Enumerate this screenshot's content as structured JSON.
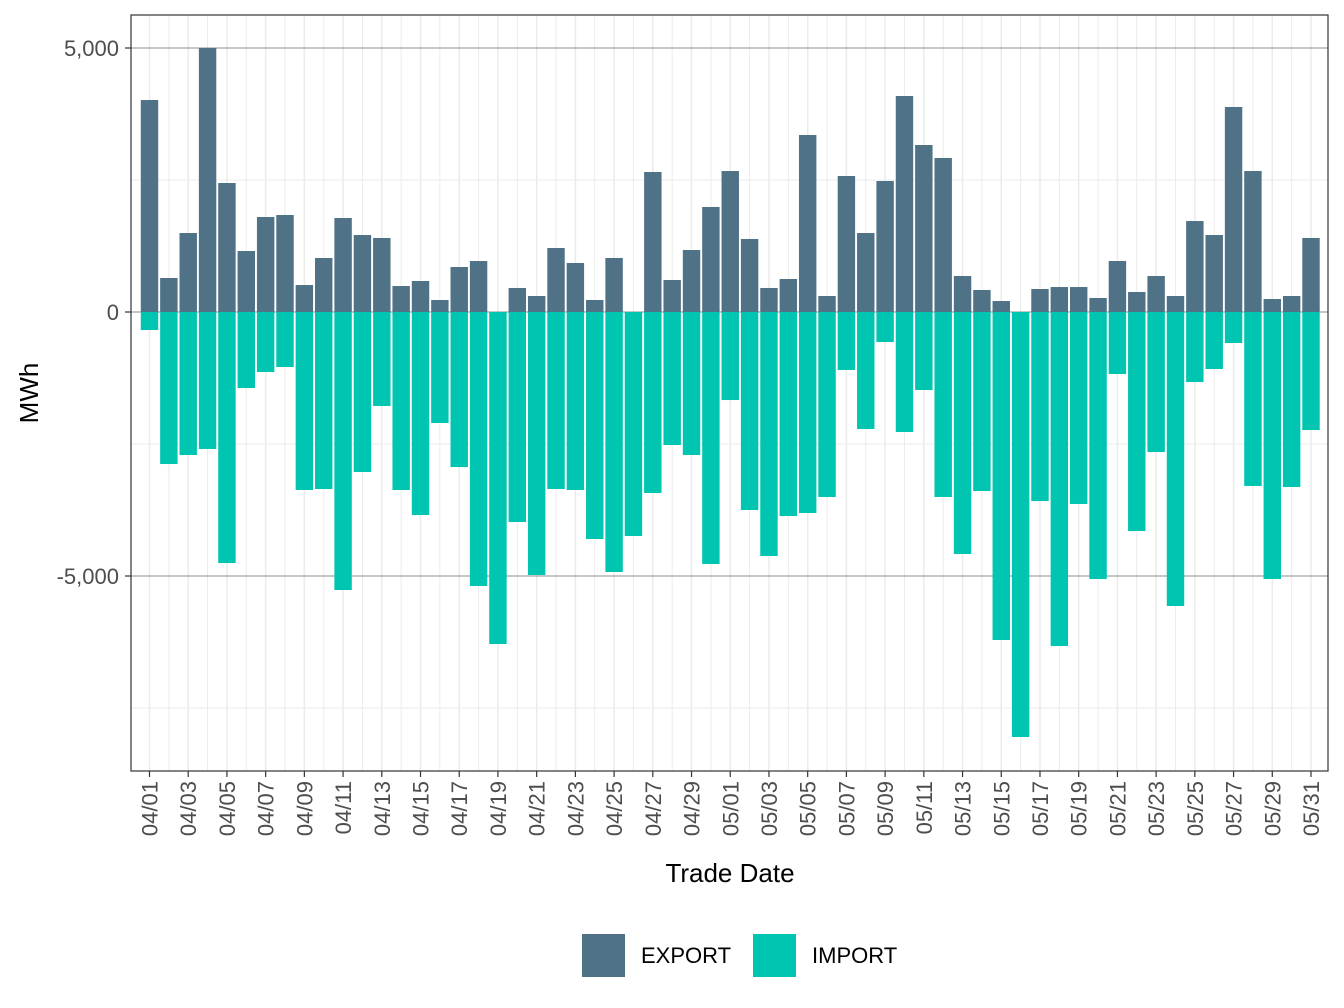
{
  "chart_data": {
    "type": "bar",
    "x_label": "Trade Date",
    "y_label": "MWh",
    "categories": [
      "04/01",
      null,
      "04/03",
      null,
      "04/05",
      null,
      "04/07",
      null,
      "04/09",
      null,
      "04/11",
      null,
      "04/13",
      null,
      "04/15",
      null,
      "04/17",
      null,
      "04/19",
      null,
      "04/21",
      null,
      "04/23",
      null,
      "04/25",
      null,
      "04/27",
      null,
      "04/29",
      null,
      "05/01",
      null,
      "05/03",
      null,
      "05/05",
      null,
      "05/07",
      null,
      "05/09",
      null,
      "05/11",
      null,
      "05/13",
      null,
      "05/15",
      null,
      "05/17",
      null,
      "05/19",
      null,
      "05/21",
      null,
      "05/23",
      null,
      "05/25",
      null,
      "05/27",
      null,
      "05/29",
      null,
      "05/31"
    ],
    "series": [
      {
        "name": "EXPORT",
        "color": "#4f7286",
        "values": [
          4015,
          644,
          1496,
          5000,
          2443,
          1155,
          1799,
          1837,
          511,
          1023,
          1780,
          1458,
          1402,
          492,
          587,
          227,
          852,
          966,
          0,
          455,
          303,
          1212,
          928,
          227,
          1023,
          0,
          2652,
          606,
          1174,
          1989,
          2670,
          1383,
          455,
          625,
          3352,
          303,
          2576,
          1496,
          2481,
          4091,
          3163,
          2917,
          682,
          417,
          208,
          0,
          436,
          473,
          473,
          265,
          966,
          379,
          682,
          303,
          1723,
          1458,
          3883,
          2670,
          246,
          303,
          1402
        ]
      },
      {
        "name": "IMPORT",
        "color": "#00c5b0",
        "values": [
          -341,
          -2879,
          -2708,
          -2595,
          -4754,
          -1439,
          -1136,
          -1042,
          -3371,
          -3352,
          -5265,
          -3030,
          -1780,
          -3371,
          -3845,
          -2102,
          -2936,
          -5189,
          -6288,
          -3977,
          -4981,
          -3352,
          -3371,
          -4299,
          -4924,
          -4242,
          -3428,
          -2519,
          -2708,
          -4773,
          -1667,
          -3750,
          -4621,
          -3864,
          -3807,
          -3504,
          -1098,
          -2216,
          -568,
          -2273,
          -1477,
          -3504,
          -4583,
          -3390,
          -6212,
          -8049,
          -3580,
          -6326,
          -3636,
          -5057,
          -1174,
          -4148,
          -2652,
          -5568,
          -1326,
          -1080,
          -587,
          -3295,
          -5057,
          -3314,
          -2235
        ]
      }
    ],
    "ylim": [
      -8693,
      5625
    ],
    "yticks": [
      {
        "value": -5000,
        "label": "-5,000"
      },
      0,
      {
        "value": 5000,
        "label": "5,000"
      }
    ],
    "minor_yticks": [
      -7500,
      -2500,
      2500
    ],
    "grid": true,
    "legend_position": "bottom"
  }
}
